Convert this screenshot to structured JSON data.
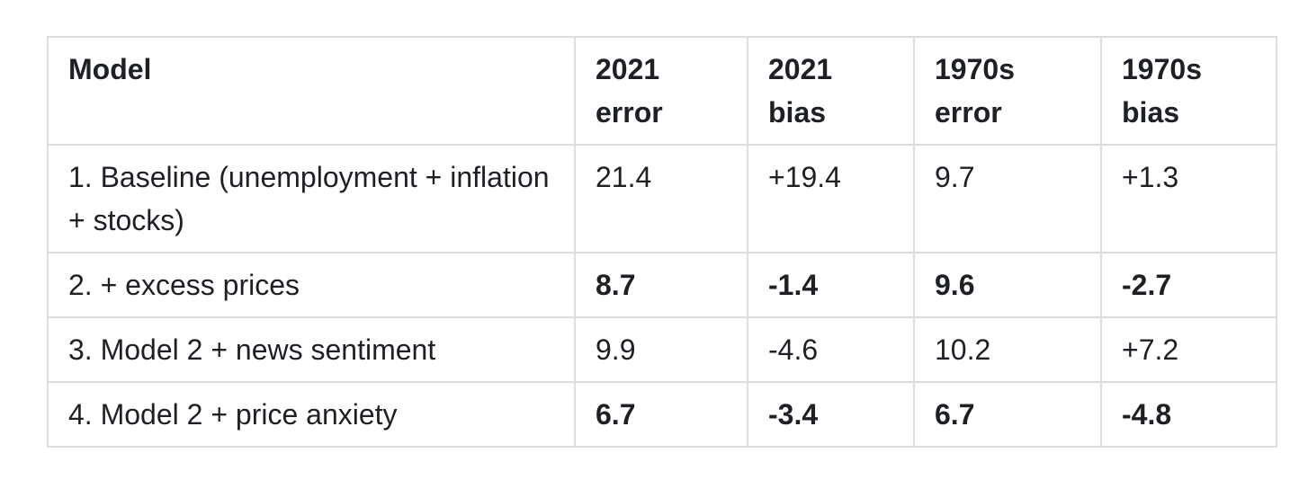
{
  "table": {
    "columns": [
      {
        "label": "Model"
      },
      {
        "label": "2021 error"
      },
      {
        "label": "2021 bias"
      },
      {
        "label": "1970s error"
      },
      {
        "label": "1970s bias"
      }
    ],
    "rows": [
      {
        "model": "1. Baseline (unemployment + inflation + stocks)",
        "values": [
          "21.4",
          "+19.4",
          "9.7",
          "+1.3"
        ],
        "emphasized": false
      },
      {
        "model": "2. + excess prices",
        "values": [
          "8.7",
          "-1.4",
          "9.6",
          "-2.7"
        ],
        "emphasized": true
      },
      {
        "model": "3. Model 2 + news sentiment",
        "values": [
          "9.9",
          "-4.6",
          "10.2",
          "+7.2"
        ],
        "emphasized": false
      },
      {
        "model": "4. Model 2 + price anxiety",
        "values": [
          "6.7",
          "-3.4",
          "6.7",
          "-4.8"
        ],
        "emphasized": true
      }
    ],
    "colors": {
      "text": "#1d2025",
      "border": "#dedede",
      "background": "#ffffff"
    }
  }
}
